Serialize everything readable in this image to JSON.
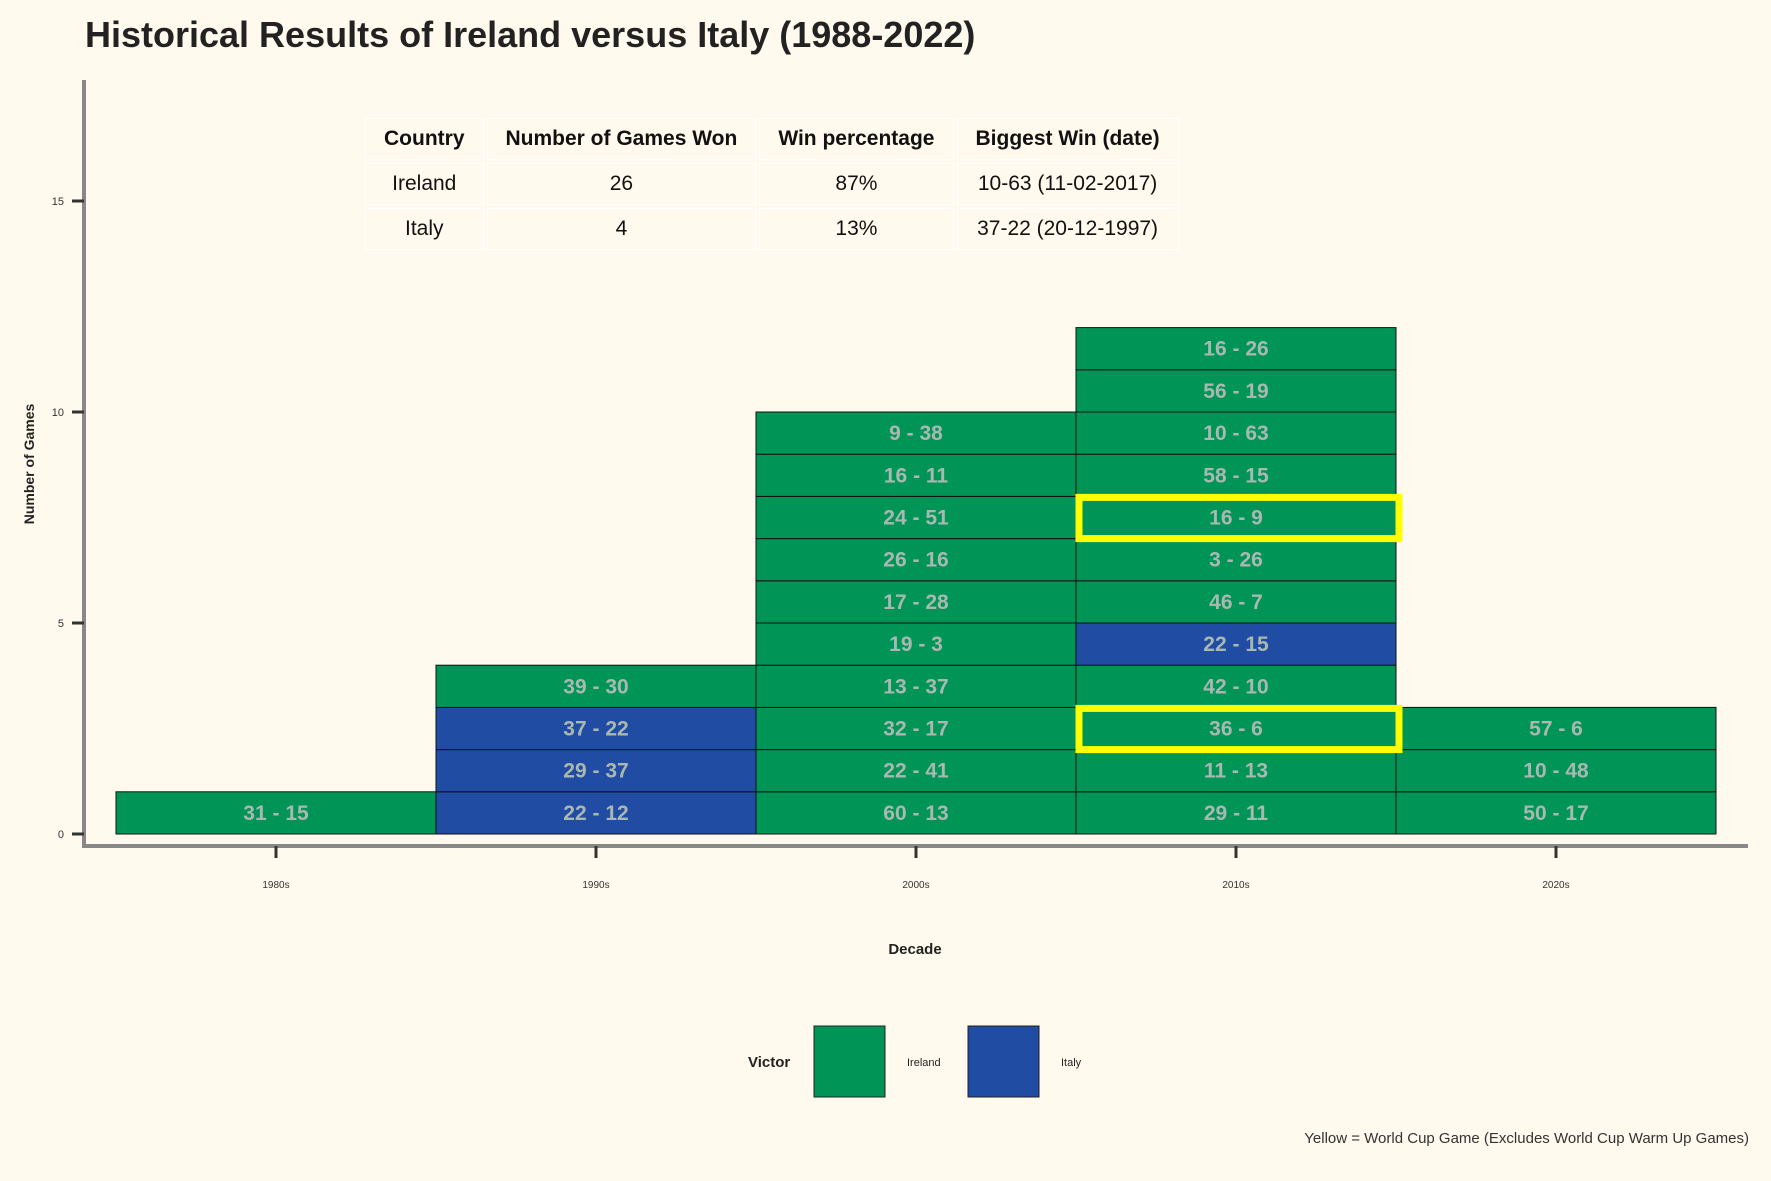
{
  "chart_data": {
    "type": "bar",
    "title": "Historical Results of Ireland versus Italy (1988-2022)",
    "xlabel": "Decade",
    "ylabel": "Number of Games",
    "ylim": [
      0,
      17.5
    ],
    "yticks": [
      0,
      5,
      10,
      15
    ],
    "categories": [
      "1980s",
      "1990s",
      "2000s",
      "2010s",
      "2020s"
    ],
    "legend": {
      "title": "Victor",
      "placement": "bottom",
      "entries": [
        {
          "name": "Ireland",
          "color": "#009557"
        },
        {
          "name": "Italy",
          "color": "#204ca3"
        }
      ]
    },
    "highlight_color": "#ffff00",
    "stacks": [
      {
        "decade": "1980s",
        "games": [
          {
            "score": "31 - 15",
            "victor": "Ireland",
            "world_cup": false
          }
        ]
      },
      {
        "decade": "1990s",
        "games": [
          {
            "score": "22 - 12",
            "victor": "Italy",
            "world_cup": false
          },
          {
            "score": "29 - 37",
            "victor": "Italy",
            "world_cup": false
          },
          {
            "score": "37 - 22",
            "victor": "Italy",
            "world_cup": false
          },
          {
            "score": "39 - 30",
            "victor": "Ireland",
            "world_cup": false
          }
        ]
      },
      {
        "decade": "2000s",
        "games": [
          {
            "score": "60 - 13",
            "victor": "Ireland",
            "world_cup": false
          },
          {
            "score": "22 - 41",
            "victor": "Ireland",
            "world_cup": false
          },
          {
            "score": "32 - 17",
            "victor": "Ireland",
            "world_cup": false
          },
          {
            "score": "13 - 37",
            "victor": "Ireland",
            "world_cup": false
          },
          {
            "score": "19 - 3",
            "victor": "Ireland",
            "world_cup": false
          },
          {
            "score": "17 - 28",
            "victor": "Ireland",
            "world_cup": false
          },
          {
            "score": "26 - 16",
            "victor": "Ireland",
            "world_cup": false
          },
          {
            "score": "24 - 51",
            "victor": "Ireland",
            "world_cup": false
          },
          {
            "score": "16 - 11",
            "victor": "Ireland",
            "world_cup": false
          },
          {
            "score": "9 - 38",
            "victor": "Ireland",
            "world_cup": false
          }
        ]
      },
      {
        "decade": "2010s",
        "games": [
          {
            "score": "29 - 11",
            "victor": "Ireland",
            "world_cup": false
          },
          {
            "score": "11 - 13",
            "victor": "Ireland",
            "world_cup": false
          },
          {
            "score": "36 - 6",
            "victor": "Ireland",
            "world_cup": true
          },
          {
            "score": "42 - 10",
            "victor": "Ireland",
            "world_cup": false
          },
          {
            "score": "22 - 15",
            "victor": "Italy",
            "world_cup": false
          },
          {
            "score": "46 - 7",
            "victor": "Ireland",
            "world_cup": false
          },
          {
            "score": "3 - 26",
            "victor": "Ireland",
            "world_cup": false
          },
          {
            "score": "16 - 9",
            "victor": "Ireland",
            "world_cup": true
          },
          {
            "score": "58 - 15",
            "victor": "Ireland",
            "world_cup": false
          },
          {
            "score": "10 - 63",
            "victor": "Ireland",
            "world_cup": false
          },
          {
            "score": "56 - 19",
            "victor": "Ireland",
            "world_cup": false
          },
          {
            "score": "16 - 26",
            "victor": "Ireland",
            "world_cup": false
          }
        ]
      },
      {
        "decade": "2020s",
        "games": [
          {
            "score": "50 - 17",
            "victor": "Ireland",
            "world_cup": false
          },
          {
            "score": "10 - 48",
            "victor": "Ireland",
            "world_cup": false
          },
          {
            "score": "57 - 6",
            "victor": "Ireland",
            "world_cup": false
          }
        ]
      }
    ],
    "annotation": "Yellow = World Cup Game (Excludes World Cup Warm Up Games)"
  },
  "summary_table": {
    "headers": [
      "Country",
      "Number of Games Won",
      "Win percentage",
      "Biggest Win (date)"
    ],
    "rows": [
      [
        "Ireland",
        "26",
        "87%",
        "10-63 (11-02-2017)"
      ],
      [
        "Italy",
        "4",
        "13%",
        "37-22 (20-12-1997)"
      ]
    ]
  }
}
